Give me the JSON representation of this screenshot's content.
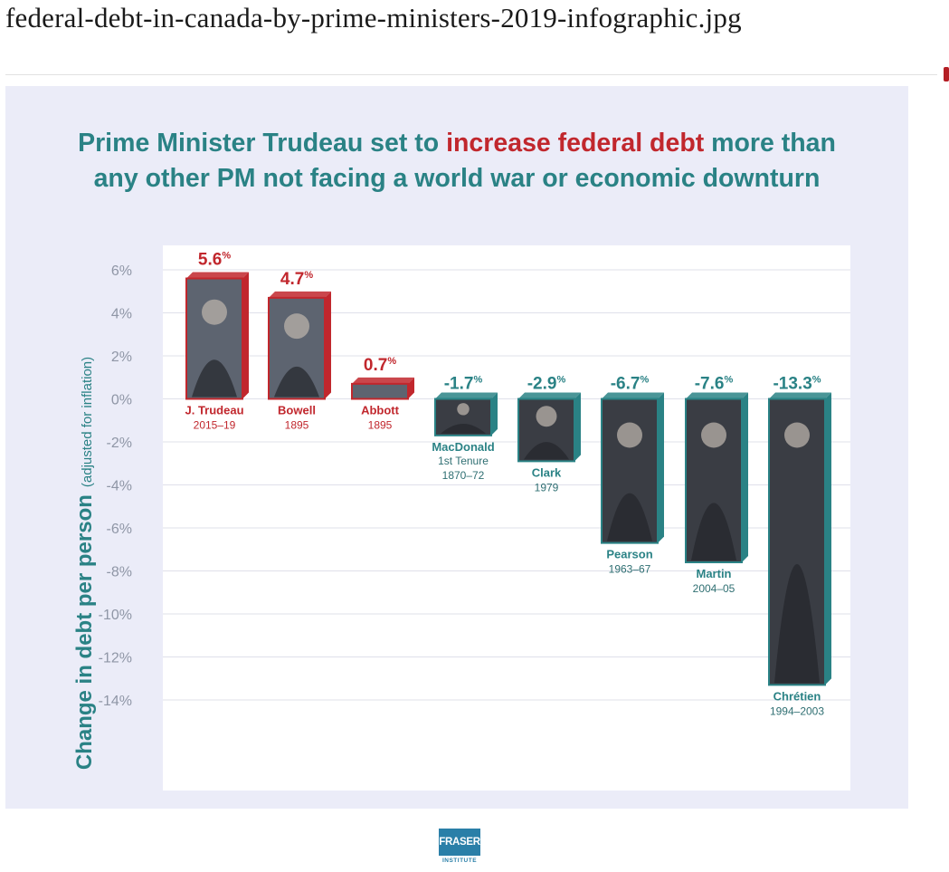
{
  "page": {
    "file_title": "federal-debt-in-canada-by-prime-ministers-2019-infographic.jpg"
  },
  "headline": {
    "part1": "Prime Minister Trudeau set to ",
    "accent": "increase federal debt",
    "part2": " more than",
    "line2": "any other PM not facing a world war or economic downturn"
  },
  "colors": {
    "teal": "#2a8285",
    "red": "#c1272d",
    "background": "#ebecf8"
  },
  "logo": {
    "name": "FRASER",
    "sub": "INSTITUTE"
  },
  "chart_data": {
    "type": "bar",
    "title": "Prime Minister Trudeau set to increase federal debt more than any other PM not facing a world war or economic downturn",
    "ylabel": "Change in debt per person",
    "ylabel_note": "(adjusted for inflation)",
    "ylim": [
      -14,
      6
    ],
    "yticks": [
      6,
      4,
      2,
      0,
      -2,
      -4,
      -6,
      -8,
      -10,
      -12,
      -14
    ],
    "ytick_labels": [
      "6%",
      "4%",
      "2%",
      "0%",
      "-2%",
      "-4%",
      "-6%",
      "-8%",
      "-10%",
      "-12%",
      "-14%"
    ],
    "grid": true,
    "value_suffix": "%",
    "bars": [
      {
        "name": "J. Trudeau",
        "years": "2015–19",
        "value": 5.6,
        "label": "5.6"
      },
      {
        "name": "Bowell",
        "years": "1895",
        "value": 4.7,
        "label": "4.7"
      },
      {
        "name": "Abbott",
        "years": "1895",
        "value": 0.7,
        "label": "0.7"
      },
      {
        "name": "MacDonald",
        "name2": "1st Tenure",
        "years": "1870–72",
        "value": -1.7,
        "label": "-1.7"
      },
      {
        "name": "Clark",
        "years": "1979",
        "value": -2.9,
        "label": "-2.9"
      },
      {
        "name": "Pearson",
        "years": "1963–67",
        "value": -6.7,
        "label": "-6.7"
      },
      {
        "name": "Martin",
        "years": "2004–05",
        "value": -7.6,
        "label": "-7.6"
      },
      {
        "name": "Chrétien",
        "years": "1994–2003",
        "value": -13.3,
        "label": "-13.3"
      }
    ]
  }
}
